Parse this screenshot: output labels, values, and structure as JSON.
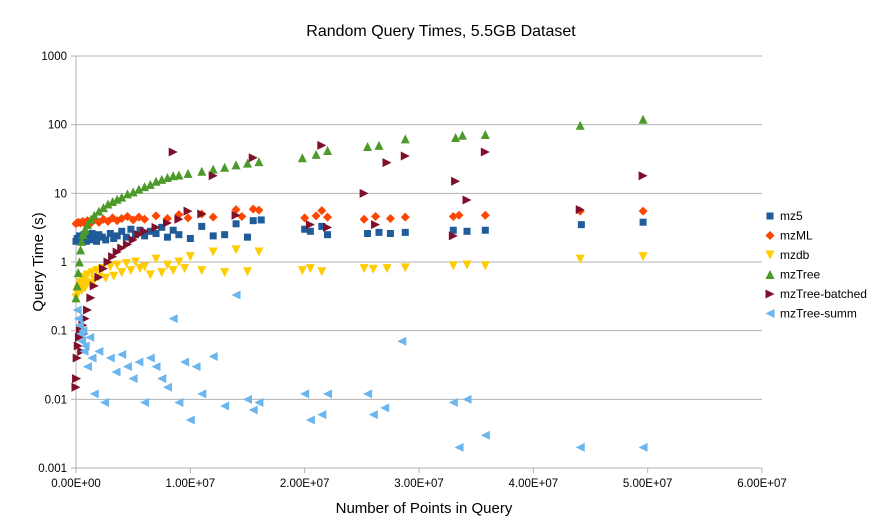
{
  "chart_data": {
    "type": "scatter",
    "title": "Random Query Times, 5.5GB Dataset",
    "xlabel": "Number of Points in Query",
    "ylabel": "Query Time (s)",
    "xlim": [
      0,
      60000000
    ],
    "ylim": [
      0.001,
      1000
    ],
    "y_scale": "log",
    "x_ticks": [
      0,
      10000000,
      20000000,
      30000000,
      40000000,
      50000000,
      60000000
    ],
    "x_tick_labels": [
      "0.00E+00",
      "1.00E+07",
      "2.00E+07",
      "3.00E+07",
      "4.00E+07",
      "5.00E+07",
      "6.00E+07"
    ],
    "y_ticks": [
      0.001,
      0.01,
      0.1,
      1,
      10,
      100,
      1000
    ],
    "y_tick_labels": [
      "0.001",
      "0.01",
      "0.1",
      "1",
      "10",
      "100",
      "1000"
    ],
    "grid": "horizontal major",
    "legend_position": "right",
    "series": [
      {
        "name": "mz5",
        "marker": "square",
        "color": "#1f5c99",
        "points": [
          [
            0,
            2.0
          ],
          [
            100000,
            2.2
          ],
          [
            200000,
            2.1
          ],
          [
            300000,
            2.4
          ],
          [
            400000,
            2.0
          ],
          [
            500000,
            2.3
          ],
          [
            600000,
            2.1
          ],
          [
            700000,
            2.5
          ],
          [
            800000,
            2.2
          ],
          [
            900000,
            2.0
          ],
          [
            1000000,
            2.4
          ],
          [
            1200000,
            2.1
          ],
          [
            1400000,
            2.6
          ],
          [
            1600000,
            2.2
          ],
          [
            1800000,
            2.0
          ],
          [
            2000000,
            2.5
          ],
          [
            2300000,
            2.3
          ],
          [
            2600000,
            2.1
          ],
          [
            3000000,
            2.6
          ],
          [
            3300000,
            2.2
          ],
          [
            3600000,
            2.4
          ],
          [
            4000000,
            2.8
          ],
          [
            4400000,
            2.3
          ],
          [
            4800000,
            3.0
          ],
          [
            5200000,
            2.5
          ],
          [
            5600000,
            2.9
          ],
          [
            6000000,
            2.4
          ],
          [
            6500000,
            2.8
          ],
          [
            7000000,
            2.6
          ],
          [
            7500000,
            3.2
          ],
          [
            8000000,
            2.3
          ],
          [
            8500000,
            2.9
          ],
          [
            9000000,
            2.5
          ],
          [
            10000000,
            2.2
          ],
          [
            11000000,
            3.3
          ],
          [
            12000000,
            2.4
          ],
          [
            13000000,
            2.5
          ],
          [
            14000000,
            3.6
          ],
          [
            15000000,
            2.3
          ],
          [
            15500000,
            4.0
          ],
          [
            16200000,
            4.1
          ],
          [
            20000000,
            3.0
          ],
          [
            20500000,
            2.8
          ],
          [
            21500000,
            3.3
          ],
          [
            22000000,
            2.5
          ],
          [
            25500000,
            2.6
          ],
          [
            26500000,
            2.7
          ],
          [
            27500000,
            2.6
          ],
          [
            28800000,
            2.7
          ],
          [
            33000000,
            2.9
          ],
          [
            34200000,
            2.8
          ],
          [
            35800000,
            2.9
          ],
          [
            44200000,
            3.5
          ],
          [
            49600000,
            3.8
          ]
        ]
      },
      {
        "name": "mzML",
        "marker": "diamond",
        "color": "#ff4500",
        "points": [
          [
            0,
            3.6
          ],
          [
            200000,
            3.8
          ],
          [
            400000,
            3.7
          ],
          [
            600000,
            3.9
          ],
          [
            800000,
            3.6
          ],
          [
            1000000,
            4.0
          ],
          [
            1300000,
            3.7
          ],
          [
            1600000,
            4.1
          ],
          [
            2000000,
            3.8
          ],
          [
            2400000,
            4.2
          ],
          [
            2800000,
            3.9
          ],
          [
            3200000,
            4.4
          ],
          [
            3600000,
            4.0
          ],
          [
            4000000,
            4.3
          ],
          [
            4500000,
            4.6
          ],
          [
            5000000,
            4.1
          ],
          [
            5500000,
            4.5
          ],
          [
            6000000,
            4.2
          ],
          [
            7000000,
            4.7
          ],
          [
            8000000,
            4.3
          ],
          [
            9000000,
            4.9
          ],
          [
            9800000,
            4.4
          ],
          [
            11000000,
            5.0
          ],
          [
            12000000,
            4.5
          ],
          [
            14000000,
            5.8
          ],
          [
            14500000,
            4.6
          ],
          [
            15500000,
            5.9
          ],
          [
            16000000,
            5.7
          ],
          [
            20000000,
            4.4
          ],
          [
            21000000,
            4.7
          ],
          [
            21500000,
            5.6
          ],
          [
            22000000,
            4.5
          ],
          [
            25200000,
            4.2
          ],
          [
            26200000,
            4.6
          ],
          [
            27500000,
            4.3
          ],
          [
            28800000,
            4.5
          ],
          [
            33000000,
            4.6
          ],
          [
            33500000,
            4.8
          ],
          [
            35800000,
            4.8
          ],
          [
            44100000,
            5.5
          ],
          [
            49600000,
            5.5
          ]
        ]
      },
      {
        "name": "mzdb",
        "marker": "triangle-down",
        "color": "#ffcc00",
        "points": [
          [
            0,
            0.3
          ],
          [
            100000,
            0.35
          ],
          [
            200000,
            0.4
          ],
          [
            300000,
            0.45
          ],
          [
            400000,
            0.5
          ],
          [
            500000,
            0.38
          ],
          [
            600000,
            0.55
          ],
          [
            700000,
            0.6
          ],
          [
            800000,
            0.42
          ],
          [
            900000,
            0.5
          ],
          [
            1000000,
            0.65
          ],
          [
            1200000,
            0.48
          ],
          [
            1400000,
            0.7
          ],
          [
            1600000,
            0.55
          ],
          [
            1800000,
            0.75
          ],
          [
            2000000,
            0.6
          ],
          [
            2300000,
            0.8
          ],
          [
            2600000,
            0.58
          ],
          [
            3000000,
            0.85
          ],
          [
            3300000,
            0.62
          ],
          [
            3600000,
            0.9
          ],
          [
            4000000,
            0.7
          ],
          [
            4400000,
            0.95
          ],
          [
            4800000,
            0.75
          ],
          [
            5200000,
            1.0
          ],
          [
            5600000,
            0.8
          ],
          [
            6000000,
            0.85
          ],
          [
            6500000,
            0.65
          ],
          [
            7000000,
            1.1
          ],
          [
            7500000,
            0.7
          ],
          [
            8000000,
            0.9
          ],
          [
            8500000,
            0.75
          ],
          [
            9000000,
            1.0
          ],
          [
            9500000,
            0.8
          ],
          [
            10000000,
            1.2
          ],
          [
            11000000,
            0.75
          ],
          [
            12000000,
            1.4
          ],
          [
            13000000,
            0.7
          ],
          [
            14000000,
            1.5
          ],
          [
            15000000,
            0.72
          ],
          [
            16000000,
            1.4
          ],
          [
            19800000,
            0.75
          ],
          [
            20500000,
            0.8
          ],
          [
            21500000,
            0.72
          ],
          [
            25200000,
            0.8
          ],
          [
            26000000,
            0.78
          ],
          [
            27200000,
            0.8
          ],
          [
            28800000,
            0.82
          ],
          [
            33000000,
            0.88
          ],
          [
            34200000,
            0.9
          ],
          [
            35800000,
            0.88
          ],
          [
            44100000,
            1.1
          ],
          [
            49600000,
            1.2
          ]
        ]
      },
      {
        "name": "mzTree",
        "marker": "triangle-up",
        "color": "#4c9a2a",
        "points": [
          [
            0,
            0.3
          ],
          [
            100000,
            0.45
          ],
          [
            200000,
            0.7
          ],
          [
            300000,
            1.0
          ],
          [
            400000,
            1.5
          ],
          [
            500000,
            2.0
          ],
          [
            600000,
            2.5
          ],
          [
            700000,
            2.8
          ],
          [
            800000,
            3.0
          ],
          [
            1000000,
            3.5
          ],
          [
            1300000,
            4.2
          ],
          [
            1600000,
            4.8
          ],
          [
            2000000,
            5.5
          ],
          [
            2400000,
            6.2
          ],
          [
            2800000,
            7.0
          ],
          [
            3200000,
            7.6
          ],
          [
            3600000,
            8.2
          ],
          [
            4000000,
            8.8
          ],
          [
            4500000,
            9.8
          ],
          [
            5000000,
            10.5
          ],
          [
            5500000,
            11.5
          ],
          [
            6000000,
            12.5
          ],
          [
            6500000,
            13.5
          ],
          [
            7000000,
            15.0
          ],
          [
            7500000,
            16.0
          ],
          [
            8000000,
            17.0
          ],
          [
            8500000,
            18.0
          ],
          [
            9000000,
            18.5
          ],
          [
            9800000,
            19.5
          ],
          [
            11000000,
            21.0
          ],
          [
            12000000,
            22.5
          ],
          [
            13000000,
            24.0
          ],
          [
            14000000,
            26.0
          ],
          [
            15000000,
            27.5
          ],
          [
            16000000,
            29.0
          ],
          [
            19800000,
            33.0
          ],
          [
            21000000,
            37.0
          ],
          [
            22000000,
            42.0
          ],
          [
            25500000,
            48.0
          ],
          [
            26500000,
            50.0
          ],
          [
            28800000,
            62.0
          ],
          [
            33200000,
            65.0
          ],
          [
            33800000,
            70.0
          ],
          [
            35800000,
            72.0
          ],
          [
            44100000,
            98.0
          ],
          [
            49600000,
            120.0
          ]
        ]
      },
      {
        "name": "mzTree-batched",
        "marker": "triangle-right",
        "color": "#7f0f2a",
        "points": [
          [
            0,
            0.015
          ],
          [
            50000,
            0.02
          ],
          [
            100000,
            0.04
          ],
          [
            200000,
            0.06
          ],
          [
            300000,
            0.08
          ],
          [
            400000,
            0.1
          ],
          [
            500000,
            0.05
          ],
          [
            600000,
            0.12
          ],
          [
            700000,
            0.09
          ],
          [
            800000,
            0.15
          ],
          [
            1000000,
            0.2
          ],
          [
            1300000,
            0.3
          ],
          [
            1600000,
            0.45
          ],
          [
            2000000,
            0.6
          ],
          [
            2400000,
            0.8
          ],
          [
            2800000,
            1.0
          ],
          [
            3200000,
            1.2
          ],
          [
            3600000,
            1.4
          ],
          [
            4000000,
            1.6
          ],
          [
            4500000,
            1.8
          ],
          [
            5000000,
            2.1
          ],
          [
            5500000,
            2.5
          ],
          [
            6000000,
            2.8
          ],
          [
            7000000,
            3.2
          ],
          [
            8000000,
            3.7
          ],
          [
            8500000,
            40.0
          ],
          [
            9000000,
            4.2
          ],
          [
            9800000,
            5.5
          ],
          [
            11000000,
            5.0
          ],
          [
            12000000,
            18.0
          ],
          [
            14000000,
            4.8
          ],
          [
            15500000,
            33.0
          ],
          [
            20500000,
            3.5
          ],
          [
            21500000,
            50.0
          ],
          [
            22000000,
            3.2
          ],
          [
            25200000,
            10.0
          ],
          [
            26200000,
            3.5
          ],
          [
            27200000,
            28.0
          ],
          [
            28800000,
            35.0
          ],
          [
            33000000,
            2.4
          ],
          [
            33200000,
            15.0
          ],
          [
            34200000,
            8.0
          ],
          [
            35800000,
            40.0
          ],
          [
            44100000,
            5.8
          ],
          [
            49600000,
            18.0
          ]
        ]
      },
      {
        "name": "mzTree-summ",
        "marker": "triangle-left",
        "color": "#6bb6ee",
        "points": [
          [
            100000,
            0.2
          ],
          [
            200000,
            0.15
          ],
          [
            300000,
            0.12
          ],
          [
            400000,
            0.09
          ],
          [
            500000,
            0.07
          ],
          [
            600000,
            0.1
          ],
          [
            700000,
            0.05
          ],
          [
            800000,
            0.06
          ],
          [
            1000000,
            0.03
          ],
          [
            1200000,
            0.08
          ],
          [
            1400000,
            0.04
          ],
          [
            1600000,
            0.012
          ],
          [
            2000000,
            0.05
          ],
          [
            2500000,
            0.009
          ],
          [
            3000000,
            0.04
          ],
          [
            3500000,
            0.025
          ],
          [
            4000000,
            0.045
          ],
          [
            4500000,
            0.03
          ],
          [
            5000000,
            0.02
          ],
          [
            5500000,
            0.035
          ],
          [
            6000000,
            0.009
          ],
          [
            6500000,
            0.04
          ],
          [
            7000000,
            0.03
          ],
          [
            7500000,
            0.02
          ],
          [
            8000000,
            0.015
          ],
          [
            8500000,
            0.15
          ],
          [
            9000000,
            0.009
          ],
          [
            9500000,
            0.035
          ],
          [
            10000000,
            0.005
          ],
          [
            10500000,
            0.03
          ],
          [
            11000000,
            0.012
          ],
          [
            12000000,
            0.042
          ],
          [
            13000000,
            0.008
          ],
          [
            14000000,
            0.33
          ],
          [
            15000000,
            0.01
          ],
          [
            15500000,
            0.007
          ],
          [
            16000000,
            0.009
          ],
          [
            20000000,
            0.012
          ],
          [
            20500000,
            0.005
          ],
          [
            21500000,
            0.006
          ],
          [
            22000000,
            0.012
          ],
          [
            25500000,
            0.012
          ],
          [
            26000000,
            0.006
          ],
          [
            27000000,
            0.0075
          ],
          [
            28500000,
            0.07
          ],
          [
            33000000,
            0.009
          ],
          [
            33500000,
            0.002
          ],
          [
            34200000,
            0.01
          ],
          [
            35800000,
            0.003
          ],
          [
            44100000,
            0.002
          ],
          [
            49600000,
            0.002
          ]
        ]
      }
    ]
  }
}
